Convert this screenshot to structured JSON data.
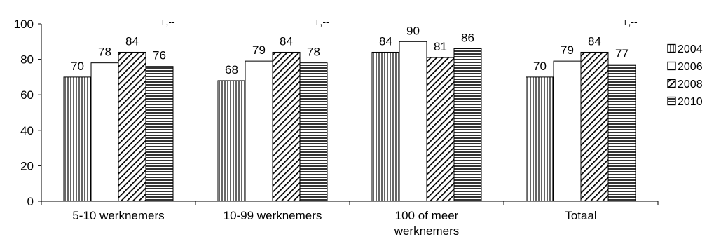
{
  "chart_data": {
    "type": "bar",
    "title": "",
    "xlabel": "",
    "ylabel": "",
    "ylim": [
      0,
      100
    ],
    "yticks": [
      0,
      20,
      40,
      60,
      80,
      100
    ],
    "grid": false,
    "legend_position": "right",
    "categories": [
      [
        "5-10 werknemers"
      ],
      [
        "10-99 werknemers"
      ],
      [
        "100 of meer",
        "werknemers"
      ],
      [
        "Totaal"
      ]
    ],
    "series": [
      {
        "name": "2004",
        "pattern": "vertical-lines",
        "values": [
          70,
          68,
          84,
          70
        ]
      },
      {
        "name": "2006",
        "pattern": "plain-white",
        "values": [
          78,
          79,
          90,
          79
        ]
      },
      {
        "name": "2008",
        "pattern": "diagonal-lines",
        "values": [
          84,
          84,
          81,
          84
        ]
      },
      {
        "name": "2010",
        "pattern": "horizontal-lines",
        "values": [
          76,
          78,
          86,
          77
        ]
      }
    ],
    "annotations": [
      "+,--",
      "+,--",
      "",
      "+,--"
    ]
  }
}
